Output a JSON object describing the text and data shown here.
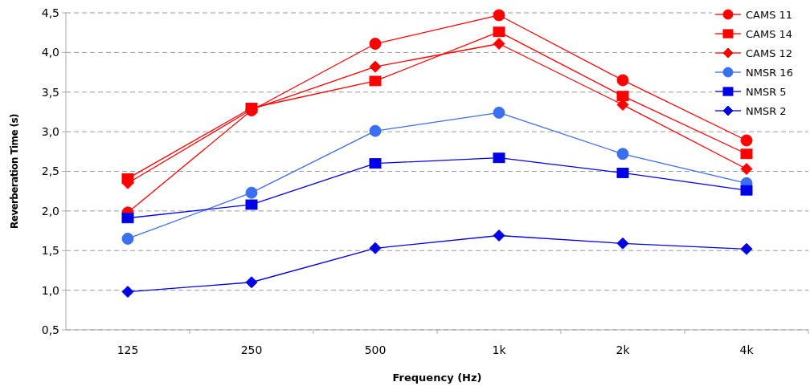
{
  "chart_data": {
    "type": "line",
    "xlabel": "Frequency (Hz)",
    "ylabel": "Reverberation Time (s)",
    "categories": [
      "125",
      "250",
      "500",
      "1k",
      "2k",
      "4k"
    ],
    "ylim": [
      0.5,
      4.5
    ],
    "yticks": [
      {
        "value": 0.5,
        "label": "0,5"
      },
      {
        "value": 1,
        "label": "1,0"
      },
      {
        "value": 1.5,
        "label": "1,5"
      },
      {
        "value": 2,
        "label": "2,0"
      },
      {
        "value": 2.5,
        "label": "2,5"
      },
      {
        "value": 3,
        "label": "3,0"
      },
      {
        "value": 3.5,
        "label": "3,5"
      },
      {
        "value": 4,
        "label": "4,0"
      },
      {
        "value": 4.5,
        "label": "4,5"
      }
    ],
    "grid": "y",
    "legend": "top right",
    "line_style": "solid",
    "series": [
      {
        "name": "CAMS 11",
        "color": "#ff0000",
        "marker": "circle",
        "values": [
          1.98,
          3.27,
          4.11,
          4.47,
          3.65,
          2.89
        ]
      },
      {
        "name": "CAMS 14",
        "color": "#ff0000",
        "marker": "square",
        "values": [
          2.41,
          3.3,
          3.64,
          4.26,
          3.45,
          2.72
        ]
      },
      {
        "name": "CAMS 12",
        "color": "#ff0000",
        "marker": "diamond",
        "values": [
          2.35,
          3.28,
          3.82,
          4.11,
          3.34,
          2.53
        ]
      },
      {
        "name": "NMSR 16",
        "color": "#3a6ff0",
        "marker": "circle",
        "values": [
          1.65,
          2.23,
          3.01,
          3.24,
          2.72,
          2.35
        ]
      },
      {
        "name": "NMSR 5",
        "color": "#0000e6",
        "marker": "square",
        "values": [
          1.91,
          2.08,
          2.6,
          2.67,
          2.48,
          2.26
        ]
      },
      {
        "name": "NMSR 2",
        "color": "#0000e6",
        "marker": "diamond",
        "values": [
          0.98,
          1.1,
          1.53,
          1.69,
          1.59,
          1.52
        ]
      }
    ]
  }
}
